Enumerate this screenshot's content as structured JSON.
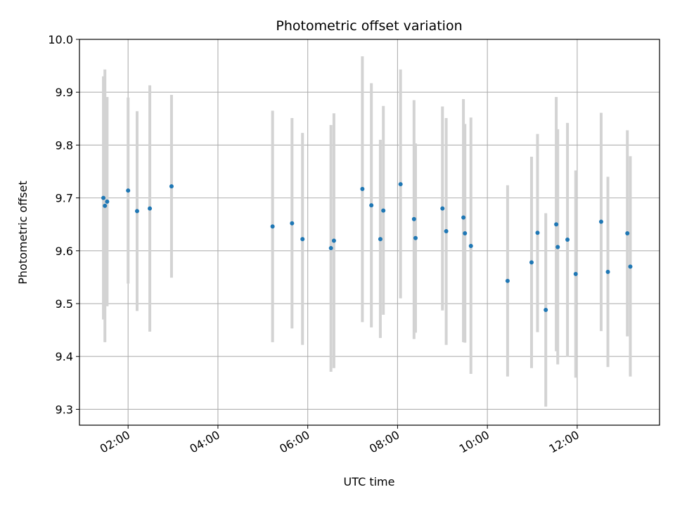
{
  "chart_data": {
    "type": "scatter",
    "title": "Photometric offset variation",
    "xlabel": "UTC time",
    "ylabel": "Photometric offset",
    "x_unit": "hours",
    "xlim": [
      "00:55",
      "13:50"
    ],
    "ylim": [
      9.27,
      10.0
    ],
    "x_ticks": [
      "02:00",
      "04:00",
      "06:00",
      "08:00",
      "10:00",
      "12:00"
    ],
    "y_ticks": [
      "9.3",
      "9.4",
      "9.5",
      "9.6",
      "9.7",
      "9.8",
      "9.9",
      "10.0"
    ],
    "grid": true,
    "marker_color": "#1f77b4",
    "errorbar_color": "#d3d3d3",
    "points": [
      {
        "x": "01:27",
        "y": 9.7,
        "lo": 9.47,
        "hi": 9.93
      },
      {
        "x": "01:29",
        "y": 9.685,
        "lo": 9.427,
        "hi": 9.943
      },
      {
        "x": "01:32",
        "y": 9.693,
        "lo": 9.495,
        "hi": 9.891
      },
      {
        "x": "02:00",
        "y": 9.714,
        "lo": 9.538,
        "hi": 9.89
      },
      {
        "x": "02:12",
        "y": 9.675,
        "lo": 9.486,
        "hi": 9.864
      },
      {
        "x": "02:29",
        "y": 9.68,
        "lo": 9.447,
        "hi": 9.913
      },
      {
        "x": "02:58",
        "y": 9.722,
        "lo": 9.549,
        "hi": 9.895
      },
      {
        "x": "05:13",
        "y": 9.646,
        "lo": 9.427,
        "hi": 9.865
      },
      {
        "x": "05:39",
        "y": 9.652,
        "lo": 9.453,
        "hi": 9.851
      },
      {
        "x": "05:53",
        "y": 9.622,
        "lo": 9.422,
        "hi": 9.823
      },
      {
        "x": "06:31",
        "y": 9.605,
        "lo": 9.371,
        "hi": 9.838
      },
      {
        "x": "06:35",
        "y": 9.619,
        "lo": 9.378,
        "hi": 9.86
      },
      {
        "x": "07:13",
        "y": 9.717,
        "lo": 9.465,
        "hi": 9.968
      },
      {
        "x": "07:25",
        "y": 9.686,
        "lo": 9.455,
        "hi": 9.917
      },
      {
        "x": "07:37",
        "y": 9.622,
        "lo": 9.435,
        "hi": 9.81
      },
      {
        "x": "07:41",
        "y": 9.676,
        "lo": 9.479,
        "hi": 9.874
      },
      {
        "x": "08:04",
        "y": 9.726,
        "lo": 9.51,
        "hi": 9.943
      },
      {
        "x": "08:22",
        "y": 9.66,
        "lo": 9.433,
        "hi": 9.885
      },
      {
        "x": "08:24",
        "y": 9.624,
        "lo": 9.445,
        "hi": 9.803
      },
      {
        "x": "09:00",
        "y": 9.68,
        "lo": 9.487,
        "hi": 9.873
      },
      {
        "x": "09:05",
        "y": 9.637,
        "lo": 9.422,
        "hi": 9.851
      },
      {
        "x": "09:28",
        "y": 9.663,
        "lo": 9.427,
        "hi": 9.887
      },
      {
        "x": "09:30",
        "y": 9.633,
        "lo": 9.426,
        "hi": 9.84
      },
      {
        "x": "09:38",
        "y": 9.609,
        "lo": 9.367,
        "hi": 9.852
      },
      {
        "x": "10:27",
        "y": 9.543,
        "lo": 9.362,
        "hi": 9.724
      },
      {
        "x": "10:59",
        "y": 9.578,
        "lo": 9.378,
        "hi": 9.778
      },
      {
        "x": "11:07",
        "y": 9.634,
        "lo": 9.446,
        "hi": 9.821
      },
      {
        "x": "11:18",
        "y": 9.488,
        "lo": 9.305,
        "hi": 9.671
      },
      {
        "x": "11:32",
        "y": 9.65,
        "lo": 9.41,
        "hi": 9.891
      },
      {
        "x": "11:34",
        "y": 9.607,
        "lo": 9.385,
        "hi": 9.83
      },
      {
        "x": "11:47",
        "y": 9.621,
        "lo": 9.399,
        "hi": 9.842
      },
      {
        "x": "11:58",
        "y": 9.556,
        "lo": 9.36,
        "hi": 9.752
      },
      {
        "x": "12:32",
        "y": 9.655,
        "lo": 9.448,
        "hi": 9.861
      },
      {
        "x": "12:41",
        "y": 9.56,
        "lo": 9.38,
        "hi": 9.74
      },
      {
        "x": "13:07",
        "y": 9.633,
        "lo": 9.438,
        "hi": 9.828
      },
      {
        "x": "13:11",
        "y": 9.57,
        "lo": 9.362,
        "hi": 9.779
      }
    ]
  }
}
